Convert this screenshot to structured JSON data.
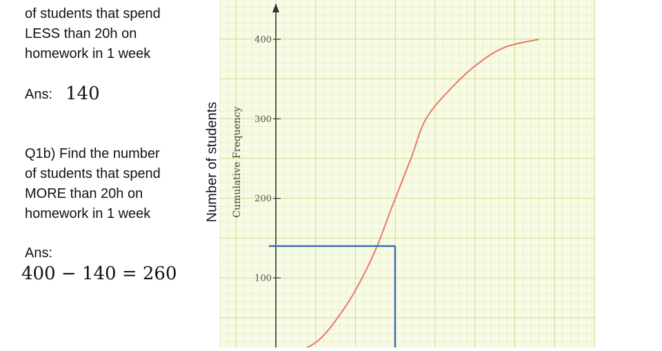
{
  "question_a": {
    "lines": [
      "of students that spend",
      "LESS than 20h on",
      "homework in 1 week"
    ],
    "ans_label": "Ans:",
    "answer": "140"
  },
  "question_b": {
    "lines": [
      "Q1b) Find the number",
      "of students that spend",
      "MORE than 20h on",
      "homework in 1 week"
    ],
    "ans_label": "Ans:",
    "answer": "400 − 140 = 260"
  },
  "chart_data": {
    "type": "line",
    "ylabel": "Number of students",
    "ylabel_secondary": "Cumulative Frequency",
    "y_ticks": [
      100,
      200,
      300,
      400
    ],
    "ylim": [
      0,
      445
    ],
    "grid": true,
    "series": [
      {
        "color": "#e8776a",
        "x_fraction": [
          0.17,
          0.26,
          0.33,
          0.38,
          0.42,
          0.46,
          0.51,
          0.55,
          0.62,
          0.69,
          0.76,
          0.85
        ],
        "values": [
          0,
          20,
          60,
          100,
          140,
          190,
          250,
          300,
          340,
          370,
          390,
          400
        ]
      }
    ],
    "annotation": {
      "y_value": 140,
      "color": "#3a6fb0"
    }
  }
}
